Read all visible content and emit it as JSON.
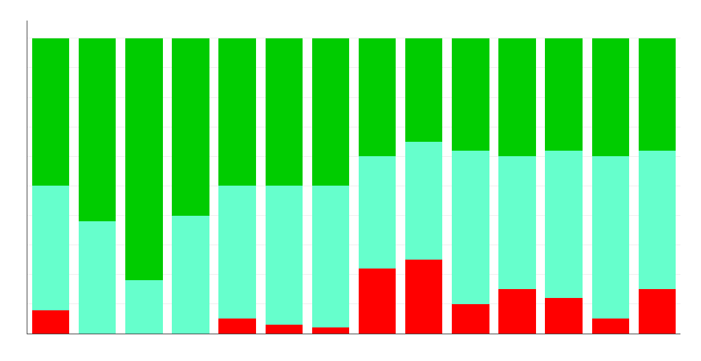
{
  "chart_data": {
    "type": "bar",
    "stacked": true,
    "categories": [
      null,
      null,
      null,
      null,
      null,
      null,
      null,
      null,
      null,
      null,
      null,
      null,
      null,
      null
    ],
    "series": [
      {
        "color": "#ff0000",
        "values": [
          8,
          0,
          0,
          0,
          5,
          3,
          2,
          22,
          25,
          10,
          15,
          12,
          5,
          15
        ]
      },
      {
        "color": "#66ffcc",
        "values": [
          42,
          38,
          18,
          40,
          45,
          47,
          48,
          38,
          40,
          52,
          45,
          50,
          55,
          47
        ]
      },
      {
        "color": "#00cc00",
        "values": [
          50,
          62,
          82,
          60,
          50,
          50,
          50,
          40,
          35,
          38,
          40,
          38,
          40,
          38
        ]
      }
    ],
    "ylim": [
      0,
      106
    ],
    "yticks": [
      0,
      10,
      20,
      30,
      40,
      50,
      60,
      70,
      80,
      90,
      100
    ],
    "grid": true,
    "tick_labels": false
  }
}
